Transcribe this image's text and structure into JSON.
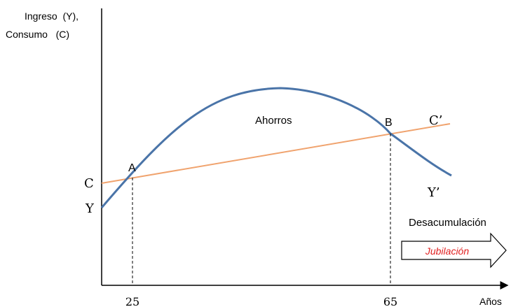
{
  "axes": {
    "y_label_line1": "Ingreso  (Y),",
    "y_label_line2": "Consumo   (C)",
    "x_label": "Años",
    "x_ticks": [
      "25",
      "65"
    ]
  },
  "curves": {
    "income_start_label": "Y",
    "income_end_label": "Y’",
    "consumption_start_label": "C",
    "consumption_end_label": "C’"
  },
  "points": {
    "a_label": "A",
    "b_label": "B"
  },
  "regions": {
    "savings_label": "Ahorros",
    "dissaving_label": "Desacumulación",
    "retirement_label": "Jubilación"
  },
  "colors": {
    "income_curve": "#4a74a8",
    "consumption_line": "#f0a36e",
    "retirement_text": "#e02020",
    "axis": "#000000"
  }
}
